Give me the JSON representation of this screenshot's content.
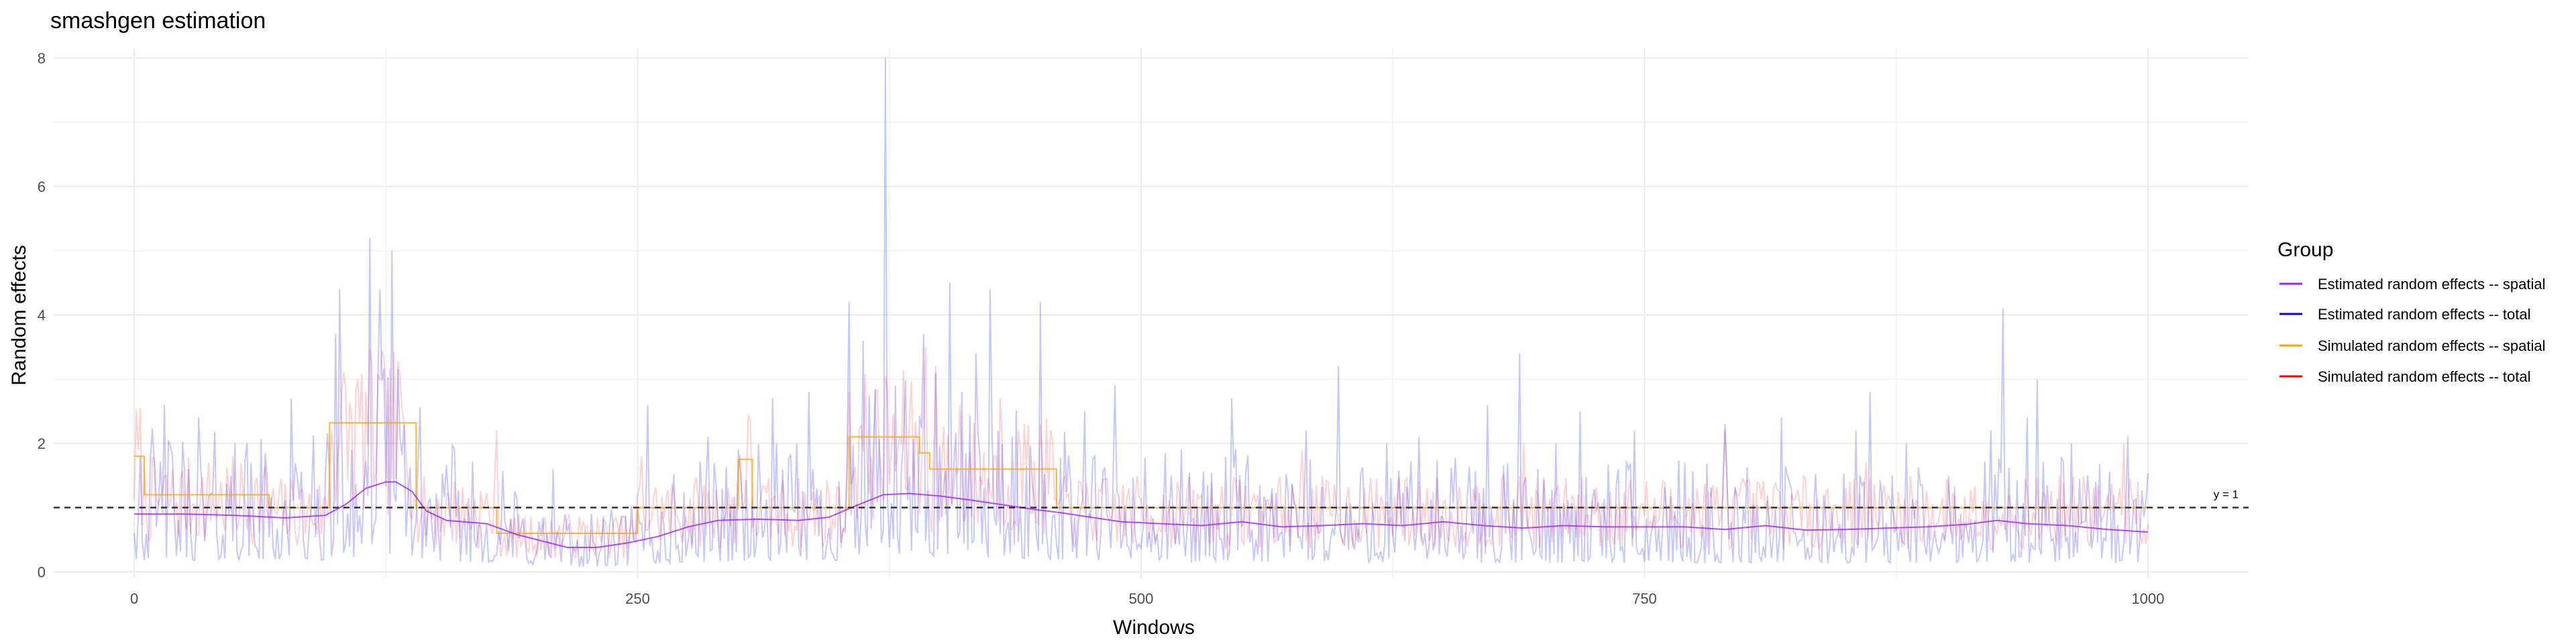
{
  "chart_data": {
    "type": "line",
    "title": "smashgen estimation",
    "xlabel": "Windows",
    "ylabel": "Random effects",
    "xlim": [
      -40,
      1050
    ],
    "ylim": [
      -0.1,
      8.15
    ],
    "x_ticks": [
      0,
      250,
      500,
      750,
      1000
    ],
    "x_tick_labels": [
      "0",
      "250",
      "500",
      "750",
      "1000"
    ],
    "y_ticks": [
      0,
      2,
      4,
      6,
      8
    ],
    "y_tick_labels": [
      "0",
      "2",
      "4",
      "6",
      "8"
    ],
    "grid": true,
    "legend": {
      "title": "Group",
      "position": "right",
      "entries": [
        {
          "label": "Estimated random effects -- spatial",
          "color": "#a020f0"
        },
        {
          "label": "Estimated random effects -- total",
          "color": "#0000ff"
        },
        {
          "label": "Simulated random effects -- spatial",
          "color": "#ffa500"
        },
        {
          "label": "Simulated random effects -- total",
          "color": "#ff0000"
        }
      ]
    },
    "reference_line": {
      "y": 1,
      "label": "y = 1",
      "style": "dashed"
    },
    "series": [
      {
        "name": "Simulated random effects -- spatial",
        "color": "#ffa500",
        "type": "step",
        "segments": [
          {
            "x0": 0,
            "x1": 5,
            "y": 1.8
          },
          {
            "x0": 5,
            "x1": 67,
            "y": 1.2
          },
          {
            "x0": 67,
            "x1": 97,
            "y": 1.0
          },
          {
            "x0": 97,
            "x1": 140,
            "y": 2.32
          },
          {
            "x0": 140,
            "x1": 180,
            "y": 1.0
          },
          {
            "x0": 180,
            "x1": 250,
            "y": 0.6
          },
          {
            "x0": 250,
            "x1": 300,
            "y": 1.0
          },
          {
            "x0": 300,
            "x1": 307,
            "y": 1.75
          },
          {
            "x0": 307,
            "x1": 355,
            "y": 1.0
          },
          {
            "x0": 355,
            "x1": 390,
            "y": 2.1
          },
          {
            "x0": 390,
            "x1": 395,
            "y": 1.85
          },
          {
            "x0": 395,
            "x1": 458,
            "y": 1.6
          },
          {
            "x0": 458,
            "x1": 1000,
            "y": 1.0
          }
        ]
      },
      {
        "name": "Estimated random effects -- spatial",
        "color": "#a020f0",
        "type": "line",
        "points": [
          [
            0,
            0.9
          ],
          [
            25,
            0.9
          ],
          [
            50,
            0.88
          ],
          [
            75,
            0.84
          ],
          [
            95,
            0.88
          ],
          [
            105,
            1.05
          ],
          [
            115,
            1.3
          ],
          [
            125,
            1.4
          ],
          [
            130,
            1.4
          ],
          [
            138,
            1.25
          ],
          [
            145,
            0.95
          ],
          [
            155,
            0.8
          ],
          [
            175,
            0.75
          ],
          [
            190,
            0.58
          ],
          [
            200,
            0.5
          ],
          [
            215,
            0.38
          ],
          [
            230,
            0.38
          ],
          [
            245,
            0.45
          ],
          [
            260,
            0.55
          ],
          [
            275,
            0.7
          ],
          [
            290,
            0.8
          ],
          [
            310,
            0.82
          ],
          [
            330,
            0.8
          ],
          [
            345,
            0.85
          ],
          [
            360,
            1.05
          ],
          [
            372,
            1.2
          ],
          [
            385,
            1.22
          ],
          [
            400,
            1.18
          ],
          [
            415,
            1.12
          ],
          [
            430,
            1.05
          ],
          [
            445,
            0.98
          ],
          [
            460,
            0.92
          ],
          [
            475,
            0.85
          ],
          [
            490,
            0.78
          ],
          [
            510,
            0.75
          ],
          [
            530,
            0.72
          ],
          [
            550,
            0.78
          ],
          [
            570,
            0.7
          ],
          [
            590,
            0.72
          ],
          [
            610,
            0.75
          ],
          [
            630,
            0.72
          ],
          [
            650,
            0.78
          ],
          [
            670,
            0.72
          ],
          [
            690,
            0.68
          ],
          [
            710,
            0.72
          ],
          [
            730,
            0.7
          ],
          [
            750,
            0.7
          ],
          [
            770,
            0.7
          ],
          [
            790,
            0.66
          ],
          [
            810,
            0.72
          ],
          [
            830,
            0.65
          ],
          [
            850,
            0.66
          ],
          [
            870,
            0.68
          ],
          [
            890,
            0.7
          ],
          [
            910,
            0.74
          ],
          [
            925,
            0.8
          ],
          [
            940,
            0.75
          ],
          [
            960,
            0.72
          ],
          [
            980,
            0.66
          ],
          [
            1000,
            0.62
          ]
        ]
      },
      {
        "name": "Estimated random effects -- total",
        "color": "#0000ff",
        "type": "line",
        "peaks": [
          [
            0,
            0.6
          ],
          [
            3,
            1.8
          ],
          [
            15,
            2.6
          ],
          [
            32,
            2.4
          ],
          [
            50,
            2.0
          ],
          [
            78,
            2.7
          ],
          [
            100,
            3.7
          ],
          [
            102,
            4.4
          ],
          [
            108,
            1.9
          ],
          [
            117,
            5.2
          ],
          [
            122,
            4.4
          ],
          [
            128,
            5.0
          ],
          [
            132,
            2.1
          ],
          [
            208,
            1.6
          ],
          [
            255,
            2.6
          ],
          [
            285,
            2.1
          ],
          [
            300,
            1.9
          ],
          [
            317,
            2.7
          ],
          [
            335,
            2.8
          ],
          [
            355,
            4.2
          ],
          [
            362,
            3.6
          ],
          [
            373,
            8.0
          ],
          [
            378,
            2.9
          ],
          [
            392,
            3.7
          ],
          [
            398,
            3.1
          ],
          [
            405,
            4.5
          ],
          [
            418,
            3.4
          ],
          [
            425,
            4.4
          ],
          [
            450,
            4.2
          ],
          [
            472,
            2.5
          ],
          [
            487,
            2.9
          ],
          [
            520,
            1.9
          ],
          [
            545,
            2.7
          ],
          [
            582,
            2.2
          ],
          [
            598,
            3.2
          ],
          [
            622,
            2.0
          ],
          [
            638,
            2.1
          ],
          [
            672,
            2.6
          ],
          [
            688,
            3.4
          ],
          [
            706,
            2.0
          ],
          [
            718,
            2.5
          ],
          [
            745,
            2.2
          ],
          [
            790,
            2.3
          ],
          [
            818,
            2.4
          ],
          [
            855,
            2.2
          ],
          [
            862,
            2.8
          ],
          [
            880,
            2.0
          ],
          [
            922,
            2.2
          ],
          [
            928,
            4.1
          ],
          [
            940,
            2.4
          ],
          [
            945,
            3.0
          ],
          [
            962,
            2.0
          ],
          [
            990,
            2.1
          ]
        ]
      },
      {
        "name": "Simulated random effects -- total",
        "color": "#ff0000",
        "type": "line",
        "peaks": [
          [
            125,
            2.8
          ],
          [
            180,
            2.2
          ],
          [
            252,
            1.8
          ],
          [
            355,
            2.8
          ],
          [
            393,
            3.5
          ],
          [
            398,
            3.2
          ],
          [
            410,
            2.6
          ],
          [
            430,
            2.7
          ],
          [
            442,
            2.3
          ],
          [
            580,
            1.9
          ],
          [
            690,
            2.0
          ],
          [
            790,
            2.2
          ],
          [
            860,
            1.7
          ],
          [
            988,
            2.0
          ]
        ]
      }
    ]
  }
}
